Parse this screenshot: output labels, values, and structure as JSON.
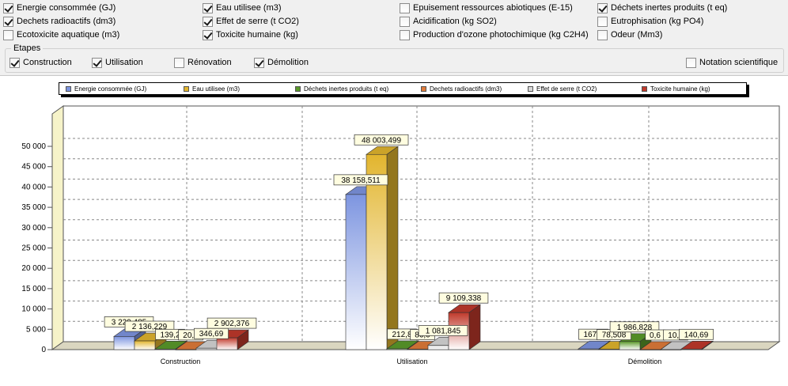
{
  "filters": {
    "indicators": [
      {
        "label": "Energie consommée (GJ)",
        "checked": true
      },
      {
        "label": "Eau utilisee (m3)",
        "checked": true
      },
      {
        "label": "Epuisement ressources abiotiques (E-15)",
        "checked": false
      },
      {
        "label": "Déchets inertes produits (t eq)",
        "checked": true
      },
      {
        "label": "Dechets radioactifs (dm3)",
        "checked": true
      },
      {
        "label": "Effet de serre (t CO2)",
        "checked": true
      },
      {
        "label": "Acidification (kg SO2)",
        "checked": false
      },
      {
        "label": "Eutrophisation (kg PO4)",
        "checked": false
      },
      {
        "label": "Ecotoxicite aquatique (m3)",
        "checked": false
      },
      {
        "label": "Toxicite humaine (kg)",
        "checked": true
      },
      {
        "label": "Production d'ozone photochimique (kg C2H4)",
        "checked": false
      },
      {
        "label": "Odeur (Mm3)",
        "checked": false
      }
    ],
    "etapes_title": "Etapes",
    "etapes": [
      {
        "label": "Construction",
        "checked": true
      },
      {
        "label": "Utilisation",
        "checked": true
      },
      {
        "label": "Rénovation",
        "checked": false
      },
      {
        "label": "Démolition",
        "checked": true
      }
    ],
    "notation": {
      "label": "Notation scientifique",
      "checked": false
    }
  },
  "chart_data": {
    "type": "bar",
    "categories": [
      "Construction",
      "Utilisation",
      "Démolition"
    ],
    "ylim": [
      0,
      50000
    ],
    "yticks": [
      "0",
      "5 000",
      "10 000",
      "15 000",
      "20 000",
      "25 000",
      "30 000",
      "35 000",
      "40 000",
      "45 000",
      "50 000"
    ],
    "grid": true,
    "legend_position": "top",
    "series": [
      {
        "name": "Energie consommée (GJ)",
        "color": "#7d95e0",
        "values": [
          3229.485,
          38158.511,
          167.6
        ],
        "labels": [
          "3 229,485",
          "38 158,511",
          "167,6"
        ]
      },
      {
        "name": "Eau utilisee (m3)",
        "color": "#e2b52e",
        "values": [
          2136.229,
          48003.499,
          78.508
        ],
        "labels": [
          "2 136,229",
          "48 003,499",
          "78,508"
        ]
      },
      {
        "name": "Déchets inertes produits (t eq)",
        "color": "#5a9a2a",
        "values": [
          139.2,
          212.8,
          1986.828
        ],
        "labels": [
          "139,2",
          "212,8",
          "1 986,828"
        ]
      },
      {
        "name": "Dechets radioactifs (dm3)",
        "color": "#e07b3a",
        "values": [
          20.0,
          86.0,
          0.6
        ],
        "labels": [
          "20,0",
          "86,0",
          "0,6"
        ]
      },
      {
        "name": "Effet de serre (t CO2)",
        "color": "#d8d8d8",
        "values": [
          346.69,
          1081.845,
          10.2
        ],
        "labels": [
          "346,69",
          "1 081,845",
          "10,2"
        ]
      },
      {
        "name": "Toxicite humaine (kg)",
        "color": "#c0392b",
        "values": [
          2902.376,
          9109.338,
          140.69
        ],
        "labels": [
          "2 902,376",
          "9 109,338",
          "140,69"
        ]
      }
    ]
  }
}
